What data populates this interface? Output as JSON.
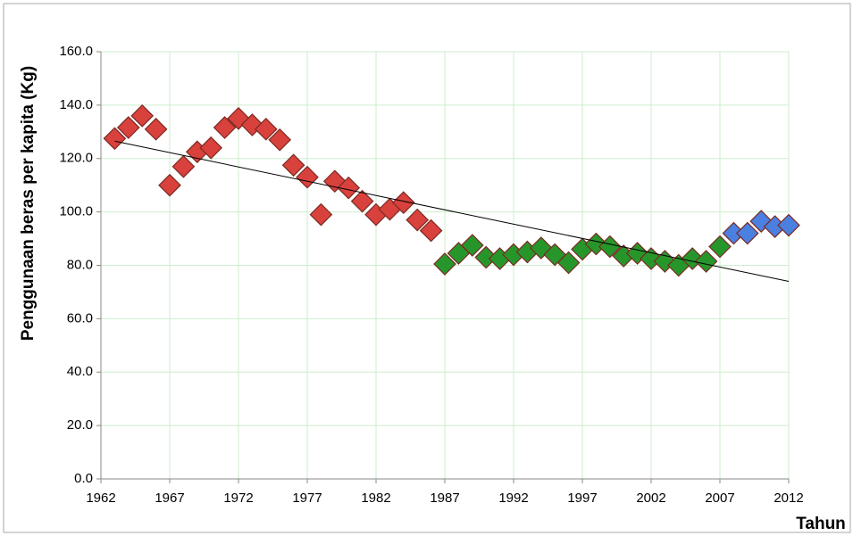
{
  "chart_data": {
    "type": "scatter",
    "x_label": "Tahun",
    "y_label": "Penggunaan beras per kapita (Kg)",
    "xlim": [
      1962,
      2012
    ],
    "xticks": [
      1962,
      1967,
      1972,
      1977,
      1982,
      1987,
      1992,
      1997,
      2002,
      2007,
      2012
    ],
    "ylim": [
      0,
      160
    ],
    "yticks": [
      {
        "value": 0,
        "label": "0.0"
      },
      {
        "value": 20,
        "label": "20.0"
      },
      {
        "value": 40,
        "label": "40.0"
      },
      {
        "value": 60,
        "label": "60.0"
      },
      {
        "value": 80,
        "label": "80.0"
      },
      {
        "value": 100,
        "label": "100.0"
      },
      {
        "value": 120,
        "label": "120.0"
      },
      {
        "value": 140,
        "label": "140.0"
      },
      {
        "value": 160,
        "label": "160.0"
      }
    ],
    "grid": true,
    "grid_color": "#cdeecd",
    "series": [
      {
        "color": "#d9413c",
        "x": [
          1963,
          1964,
          1965,
          1966,
          1967,
          1968,
          1969,
          1970,
          1971,
          1972,
          1973,
          1974,
          1975,
          1976,
          1977,
          1978,
          1979,
          1980,
          1981,
          1982,
          1983,
          1984,
          1985,
          1986
        ],
        "values": [
          127.5,
          131.6,
          136,
          131,
          110,
          117,
          122.5,
          124,
          131.6,
          135,
          132.6,
          131,
          127,
          117.5,
          113,
          99,
          111.5,
          109,
          104,
          99,
          101,
          103.5,
          97,
          93
        ]
      },
      {
        "color": "#27962a",
        "x": [
          1987,
          1988,
          1989,
          1990,
          1991,
          1992,
          1993,
          1994,
          1995,
          1996,
          1997,
          1998,
          1999,
          2000,
          2001,
          2002,
          2003,
          2004,
          2005,
          2006,
          2007
        ],
        "values": [
          80.5,
          84.5,
          87.5,
          83,
          82.5,
          84,
          85,
          86.5,
          84,
          81,
          86,
          88,
          87,
          83.5,
          84.5,
          82.5,
          81.5,
          80,
          82.5,
          81.5,
          87
        ]
      },
      {
        "color": "#4b7fe0",
        "x": [
          2008,
          2009,
          2010,
          2011,
          2012
        ],
        "values": [
          92,
          92,
          96.5,
          94.5,
          95
        ]
      }
    ],
    "trendline": {
      "color": "#000000",
      "x": [
        1963,
        2012
      ],
      "values": [
        126.5,
        74
      ]
    }
  }
}
